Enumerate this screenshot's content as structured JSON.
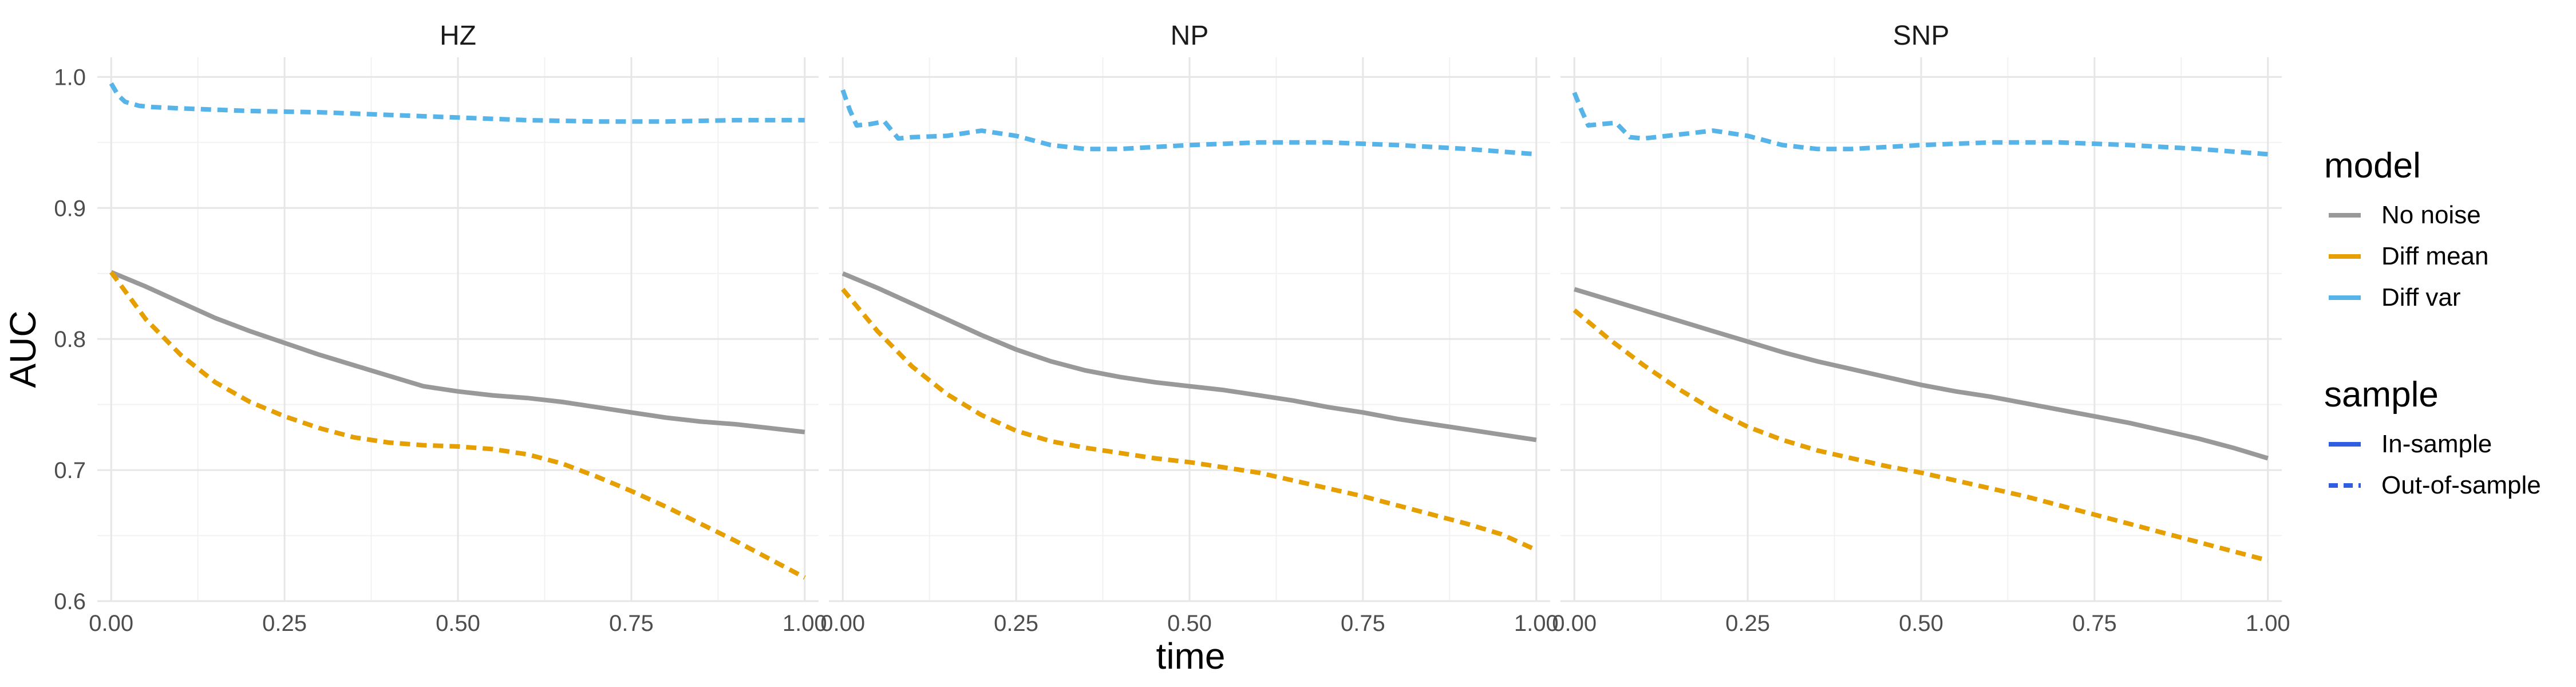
{
  "chart_data": {
    "type": "line",
    "facets": [
      "HZ",
      "NP",
      "SNP"
    ],
    "xlabel": "time",
    "ylabel": "AUC",
    "xlim": [
      -0.02,
      1.02
    ],
    "ylim": [
      0.6,
      1.015
    ],
    "x_ticks": [
      0,
      0.25,
      0.5,
      0.75,
      1
    ],
    "x_tick_labels": [
      "0.00",
      "0.25",
      "0.50",
      "0.75",
      "1.00"
    ],
    "y_ticks": [
      0.6,
      0.7,
      0.8,
      0.9,
      1.0
    ],
    "y_tick_labels": [
      "0.6",
      "0.7",
      "0.8",
      "0.9",
      "1.0"
    ],
    "grid": true,
    "legend_position": "right",
    "legends": [
      {
        "title": "model",
        "entries": [
          {
            "label": "No noise",
            "color": "#999999",
            "dash": "solid"
          },
          {
            "label": "Diff mean",
            "color": "#E69F00",
            "dash": "solid"
          },
          {
            "label": "Diff var",
            "color": "#56B4E9",
            "dash": "solid"
          }
        ]
      },
      {
        "title": "sample",
        "entries": [
          {
            "label": "In-sample",
            "color": "#2f5fe0",
            "dash": "solid"
          },
          {
            "label": "Out-of-sample",
            "color": "#2f5fe0",
            "dash": "dashed"
          }
        ]
      }
    ],
    "series": [
      {
        "facet": "HZ",
        "model": "No noise",
        "sample": "In-sample",
        "x": [
          0,
          0.05,
          0.1,
          0.15,
          0.2,
          0.25,
          0.3,
          0.35,
          0.4,
          0.45,
          0.5,
          0.55,
          0.6,
          0.65,
          0.7,
          0.75,
          0.8,
          0.85,
          0.9,
          0.95,
          1.0
        ],
        "y": [
          0.851,
          0.84,
          0.828,
          0.816,
          0.806,
          0.797,
          0.788,
          0.78,
          0.772,
          0.764,
          0.76,
          0.757,
          0.755,
          0.752,
          0.748,
          0.744,
          0.74,
          0.737,
          0.735,
          0.732,
          0.729
        ]
      },
      {
        "facet": "HZ",
        "model": "Diff mean",
        "sample": "Out-of-sample",
        "x": [
          0,
          0.05,
          0.1,
          0.15,
          0.2,
          0.25,
          0.3,
          0.35,
          0.4,
          0.45,
          0.5,
          0.55,
          0.6,
          0.65,
          0.7,
          0.75,
          0.8,
          0.85,
          0.9,
          0.95,
          1.0
        ],
        "y": [
          0.851,
          0.815,
          0.788,
          0.767,
          0.752,
          0.741,
          0.732,
          0.725,
          0.721,
          0.719,
          0.718,
          0.716,
          0.712,
          0.705,
          0.695,
          0.684,
          0.672,
          0.659,
          0.646,
          0.632,
          0.618
        ]
      },
      {
        "facet": "HZ",
        "model": "Diff var",
        "sample": "Out-of-sample",
        "x": [
          0,
          0.01,
          0.02,
          0.04,
          0.06,
          0.1,
          0.2,
          0.3,
          0.4,
          0.5,
          0.6,
          0.7,
          0.8,
          0.9,
          1.0
        ],
        "y": [
          0.995,
          0.986,
          0.981,
          0.978,
          0.977,
          0.976,
          0.974,
          0.973,
          0.971,
          0.969,
          0.967,
          0.966,
          0.966,
          0.967,
          0.967
        ]
      },
      {
        "facet": "NP",
        "model": "No noise",
        "sample": "In-sample",
        "x": [
          0,
          0.05,
          0.1,
          0.15,
          0.2,
          0.25,
          0.3,
          0.35,
          0.4,
          0.45,
          0.5,
          0.55,
          0.6,
          0.65,
          0.7,
          0.75,
          0.8,
          0.85,
          0.9,
          0.95,
          1.0
        ],
        "y": [
          0.85,
          0.839,
          0.827,
          0.815,
          0.803,
          0.792,
          0.783,
          0.776,
          0.771,
          0.767,
          0.764,
          0.761,
          0.757,
          0.753,
          0.748,
          0.744,
          0.739,
          0.735,
          0.731,
          0.727,
          0.723
        ]
      },
      {
        "facet": "NP",
        "model": "Diff mean",
        "sample": "Out-of-sample",
        "x": [
          0,
          0.05,
          0.1,
          0.15,
          0.2,
          0.25,
          0.3,
          0.35,
          0.4,
          0.45,
          0.5,
          0.55,
          0.6,
          0.65,
          0.7,
          0.75,
          0.8,
          0.85,
          0.9,
          0.95,
          1.0
        ],
        "y": [
          0.838,
          0.806,
          0.779,
          0.758,
          0.742,
          0.73,
          0.722,
          0.717,
          0.713,
          0.709,
          0.706,
          0.702,
          0.698,
          0.692,
          0.686,
          0.68,
          0.673,
          0.666,
          0.659,
          0.651,
          0.639
        ]
      },
      {
        "facet": "NP",
        "model": "Diff var",
        "sample": "Out-of-sample",
        "x": [
          0,
          0.01,
          0.02,
          0.04,
          0.06,
          0.08,
          0.1,
          0.15,
          0.2,
          0.25,
          0.3,
          0.35,
          0.4,
          0.5,
          0.6,
          0.7,
          0.8,
          0.9,
          1.0
        ],
        "y": [
          0.99,
          0.975,
          0.963,
          0.964,
          0.966,
          0.953,
          0.954,
          0.955,
          0.959,
          0.955,
          0.948,
          0.945,
          0.945,
          0.948,
          0.95,
          0.95,
          0.948,
          0.945,
          0.941
        ]
      },
      {
        "facet": "SNP",
        "model": "No noise",
        "sample": "In-sample",
        "x": [
          0,
          0.05,
          0.1,
          0.15,
          0.2,
          0.25,
          0.3,
          0.35,
          0.4,
          0.45,
          0.5,
          0.55,
          0.6,
          0.65,
          0.7,
          0.75,
          0.8,
          0.85,
          0.9,
          0.95,
          1.0
        ],
        "y": [
          0.838,
          0.83,
          0.822,
          0.814,
          0.806,
          0.798,
          0.79,
          0.783,
          0.777,
          0.771,
          0.765,
          0.76,
          0.756,
          0.751,
          0.746,
          0.741,
          0.736,
          0.73,
          0.724,
          0.717,
          0.709
        ]
      },
      {
        "facet": "SNP",
        "model": "Diff mean",
        "sample": "Out-of-sample",
        "x": [
          0,
          0.05,
          0.1,
          0.15,
          0.2,
          0.25,
          0.3,
          0.35,
          0.4,
          0.45,
          0.5,
          0.55,
          0.6,
          0.65,
          0.7,
          0.75,
          0.8,
          0.85,
          0.9,
          0.95,
          1.0
        ],
        "y": [
          0.822,
          0.8,
          0.78,
          0.762,
          0.746,
          0.733,
          0.723,
          0.715,
          0.709,
          0.703,
          0.698,
          0.692,
          0.686,
          0.68,
          0.673,
          0.666,
          0.659,
          0.652,
          0.645,
          0.638,
          0.631
        ]
      },
      {
        "facet": "SNP",
        "model": "Diff var",
        "sample": "Out-of-sample",
        "x": [
          0,
          0.01,
          0.02,
          0.04,
          0.06,
          0.08,
          0.1,
          0.15,
          0.2,
          0.25,
          0.3,
          0.35,
          0.4,
          0.5,
          0.6,
          0.7,
          0.8,
          0.9,
          1.0
        ],
        "y": [
          0.988,
          0.975,
          0.963,
          0.964,
          0.965,
          0.954,
          0.953,
          0.956,
          0.959,
          0.955,
          0.948,
          0.945,
          0.945,
          0.948,
          0.95,
          0.95,
          0.948,
          0.945,
          0.941
        ]
      }
    ]
  }
}
